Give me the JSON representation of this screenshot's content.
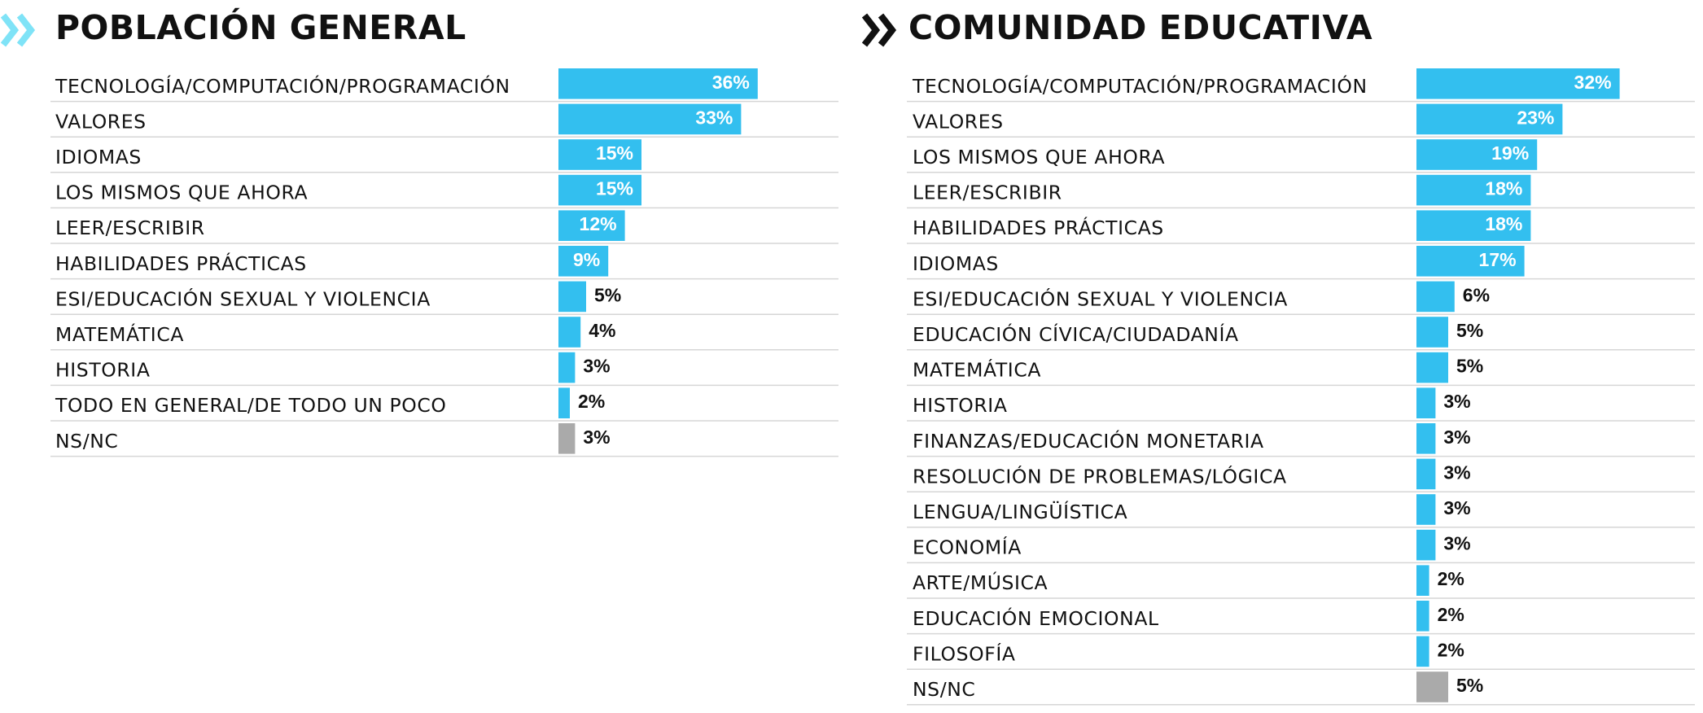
{
  "chart_data": [
    {
      "type": "bar",
      "orientation": "horizontal",
      "title": "POBLACIÓN GENERAL",
      "categories": [
        "TECNOLOGÍA/COMPUTACIÓN/PROGRAMACIÓN",
        "VALORES",
        "IDIOMAS",
        "LOS MISMOS QUE AHORA",
        "LEER/ESCRIBIR",
        "HABILIDADES PRÁCTICAS",
        "ESI/EDUCACIÓN SEXUAL Y VIOLENCIA",
        "MATEMÁTICA",
        "HISTORIA",
        "TODO EN GENERAL/DE TODO UN POCO",
        "NS/NC"
      ],
      "values": [
        36,
        33,
        15,
        15,
        12,
        9,
        5,
        4,
        3,
        2,
        3
      ],
      "value_labels": [
        "36%",
        "33%",
        "15%",
        "15%",
        "12%",
        "9%",
        "5%",
        "4%",
        "3%",
        "2%",
        "3%"
      ],
      "highlight_last_gray": true,
      "grid": false
    },
    {
      "type": "bar",
      "orientation": "horizontal",
      "title": "COMUNIDAD EDUCATIVA",
      "categories": [
        "TECNOLOGÍA/COMPUTACIÓN/PROGRAMACIÓN",
        "VALORES",
        "LOS MISMOS QUE AHORA",
        "LEER/ESCRIBIR",
        "HABILIDADES PRÁCTICAS",
        "IDIOMAS",
        "ESI/EDUCACIÓN SEXUAL Y VIOLENCIA",
        "EDUCACIÓN CÍVICA/CIUDADANÍA",
        "MATEMÁTICA",
        "HISTORIA",
        "FINANZAS/EDUCACIÓN MONETARIA",
        "RESOLUCIÓN DE PROBLEMAS/LÓGICA",
        "LENGUA/LINGÜÍSTICA",
        "ECONOMÍA",
        "ARTE/MÚSICA",
        "EDUCACIÓN EMOCIONAL",
        "FILOSOFÍA",
        "NS/NC"
      ],
      "values": [
        32,
        23,
        19,
        18,
        18,
        17,
        6,
        5,
        5,
        3,
        3,
        3,
        3,
        3,
        2,
        2,
        2,
        5
      ],
      "value_labels": [
        "32%",
        "23%",
        "19%",
        "18%",
        "18%",
        "17%",
        "6%",
        "5%",
        "5%",
        "3%",
        "3%",
        "3%",
        "3%",
        "3%",
        "2%",
        "2%",
        "2%",
        "5%"
      ],
      "highlight_last_gray": true,
      "grid": false
    }
  ],
  "colors": {
    "bar": "#33bfef",
    "nsnc_bar": "#aaaaaa",
    "separator": "#d6d6d6",
    "chevron_left": "#7fe3f7",
    "chevron_right": "#111111",
    "text": "#111111",
    "muted_value": "#777777"
  },
  "icons": {
    "left": "double-chevron-right-icon",
    "right": "double-chevron-right-icon"
  }
}
